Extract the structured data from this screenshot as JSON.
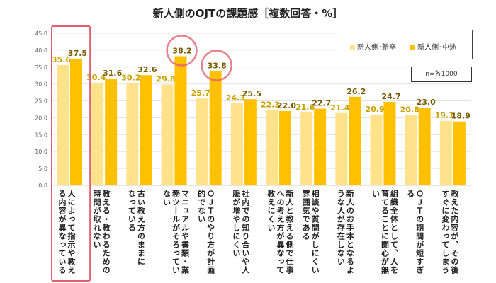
{
  "chart_data": {
    "type": "bar",
    "title": "新人側のOJTの課題感［複数回答・%］",
    "ylim": [
      0,
      45
    ],
    "yticks": [
      "0.0",
      "5.0",
      "10.0",
      "15.0",
      "20.0",
      "25.0",
      "30.0",
      "35.0",
      "40.0",
      "45.0"
    ],
    "grid": true,
    "legend_placement": "top-right",
    "note": "n=各1000",
    "categories": [
      "人によって指示や教え\nる内容が異なっている",
      "教える・教わるための\n時間が取れない",
      "古い教え方のままに\nなっている",
      "マニュアルや書類・業\n務ツールがそろってい\nない",
      "ＯＪＴのやり方が計画\n的でない",
      "社内での知り合いや人\n脈が増やしにくい",
      "新人と教える側で仕事\nへの考え方が異なって\n教えにくい",
      "相談や質問がしにくい\n雰囲気である",
      "新人のお手本となるよ\nうな人が存在しない",
      "組織全体として、人を\n育てることに関心が無\nい",
      "ＯＪＴの期間が短すぎ\nる",
      "教えた内容が、その後\nすぐに変わってしまう"
    ],
    "series": [
      {
        "name": "新人側･新卒",
        "color": "#FFE28A",
        "label_color": "#C9A100",
        "values": [
          35.6,
          30.4,
          30.2,
          29.8,
          25.7,
          24.3,
          22.3,
          21.6,
          21.4,
          20.9,
          20.8,
          19.1
        ]
      },
      {
        "name": "新人側･中途",
        "color": "#FFC000",
        "label_color": "#7A5A00",
        "values": [
          37.5,
          31.6,
          32.6,
          38.2,
          33.8,
          25.5,
          22.0,
          22.7,
          26.2,
          24.7,
          23.0,
          18.9
        ]
      }
    ],
    "highlight_box_category": 0,
    "highlight_circles": [
      {
        "series": 1,
        "category": 3
      },
      {
        "series": 1,
        "category": 4
      }
    ],
    "highlight_color": "#E06070"
  }
}
